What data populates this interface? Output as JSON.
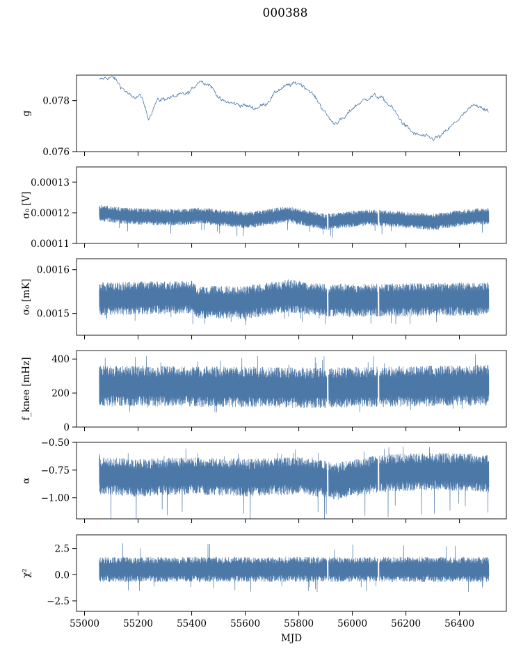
{
  "figure": {
    "title": "000388",
    "xlabel": "MJD",
    "line_color": "#4c78a8"
  },
  "chart_data": [
    {
      "type": "line",
      "name": "g",
      "ylabel": "g",
      "x_range": [
        54970,
        56575
      ],
      "ylim": [
        0.076,
        0.079
      ],
      "yticks": [
        0.076,
        0.078
      ],
      "ytick_labels": [
        "0.076",
        "0.078"
      ],
      "xticks": [
        55000,
        55200,
        55400,
        55600,
        55800,
        56000,
        56200,
        56400
      ],
      "show_xtick_labels": false,
      "x_data_range": [
        55055,
        56510
      ],
      "band": false,
      "anchors": [
        [
          55055,
          0.0788
        ],
        [
          55080,
          0.0789
        ],
        [
          55110,
          0.0789
        ],
        [
          55140,
          0.0785
        ],
        [
          55180,
          0.0781
        ],
        [
          55210,
          0.0782
        ],
        [
          55240,
          0.0773
        ],
        [
          55270,
          0.078
        ],
        [
          55310,
          0.0781
        ],
        [
          55350,
          0.0782
        ],
        [
          55390,
          0.0783
        ],
        [
          55430,
          0.0788
        ],
        [
          55470,
          0.0786
        ],
        [
          55510,
          0.078
        ],
        [
          55550,
          0.0779
        ],
        [
          55600,
          0.0778
        ],
        [
          55640,
          0.0777
        ],
        [
          55680,
          0.0779
        ],
        [
          55720,
          0.0784
        ],
        [
          55760,
          0.0786
        ],
        [
          55800,
          0.0787
        ],
        [
          55840,
          0.0784
        ],
        [
          55870,
          0.078
        ],
        [
          55900,
          0.0775
        ],
        [
          55930,
          0.0771
        ],
        [
          55970,
          0.0773
        ],
        [
          56000,
          0.0777
        ],
        [
          56040,
          0.078
        ],
        [
          56080,
          0.0782
        ],
        [
          56110,
          0.0781
        ],
        [
          56150,
          0.0777
        ],
        [
          56190,
          0.0771
        ],
        [
          56230,
          0.0767
        ],
        [
          56270,
          0.0766
        ],
        [
          56300,
          0.0765
        ],
        [
          56330,
          0.0766
        ],
        [
          56370,
          0.077
        ],
        [
          56410,
          0.0774
        ],
        [
          56450,
          0.0778
        ],
        [
          56480,
          0.0778
        ],
        [
          56510,
          0.0775
        ]
      ],
      "noise": 0.00012,
      "gaps": []
    },
    {
      "type": "line",
      "name": "sigma0_V",
      "ylabel": "σ₀ [V]",
      "x_range": [
        54970,
        56575
      ],
      "ylim": [
        0.00011,
        0.000135
      ],
      "yticks": [
        0.00011,
        0.00012,
        0.00013
      ],
      "ytick_labels": [
        "0.00011",
        "0.00012",
        "0.00013"
      ],
      "xticks": [
        55000,
        55200,
        55400,
        55600,
        55800,
        56000,
        56200,
        56400
      ],
      "show_xtick_labels": false,
      "x_data_range": [
        55055,
        56510
      ],
      "band": true,
      "anchors": [
        [
          55055,
          0.00012
        ],
        [
          55150,
          0.000119
        ],
        [
          55300,
          0.0001185
        ],
        [
          55450,
          0.000119
        ],
        [
          55600,
          0.0001175
        ],
        [
          55760,
          0.0001195
        ],
        [
          55900,
          0.000117
        ],
        [
          56050,
          0.0001185
        ],
        [
          56150,
          0.000118
        ],
        [
          56300,
          0.000117
        ],
        [
          56420,
          0.0001185
        ],
        [
          56510,
          0.000119
        ]
      ],
      "band_half": 2.7e-06,
      "spike_down": 5.5e-06,
      "spike_up": 3e-06,
      "gaps": [
        [
          55905,
          55911
        ],
        [
          56095,
          56101
        ]
      ]
    },
    {
      "type": "line",
      "name": "sigma0_mK",
      "ylabel": "σ₀ [mK]",
      "x_range": [
        54970,
        56575
      ],
      "ylim": [
        0.00145,
        0.001625
      ],
      "yticks": [
        0.0015,
        0.0016
      ],
      "ytick_labels": [
        "0.0015",
        "0.0016"
      ],
      "xticks": [
        55000,
        55200,
        55400,
        55600,
        55800,
        56000,
        56200,
        56400
      ],
      "show_xtick_labels": false,
      "x_data_range": [
        55055,
        56510
      ],
      "band": true,
      "anchors": [
        [
          55055,
          0.001533
        ],
        [
          55200,
          0.001535
        ],
        [
          55400,
          0.001537
        ],
        [
          55420,
          0.001525
        ],
        [
          55600,
          0.001525
        ],
        [
          55760,
          0.00154
        ],
        [
          55900,
          0.00153
        ],
        [
          56100,
          0.00153
        ],
        [
          56300,
          0.001532
        ],
        [
          56510,
          0.001533
        ]
      ],
      "band_half": 3.8e-05,
      "spike_down": 6e-05,
      "spike_up": 3.5e-05,
      "gaps": [
        [
          55905,
          55911
        ],
        [
          56095,
          56101
        ]
      ]
    },
    {
      "type": "line",
      "name": "fknee",
      "ylabel": "f_knee [mHz]",
      "x_range": [
        54970,
        56575
      ],
      "ylim": [
        0,
        450
      ],
      "yticks": [
        0,
        200,
        400
      ],
      "ytick_labels": [
        "0",
        "200",
        "400"
      ],
      "xticks": [
        55000,
        55200,
        55400,
        55600,
        55800,
        56000,
        56200,
        56400
      ],
      "show_xtick_labels": false,
      "x_data_range": [
        55055,
        56510
      ],
      "band": true,
      "anchors": [
        [
          55055,
          240
        ],
        [
          55300,
          240
        ],
        [
          55600,
          235
        ],
        [
          55900,
          230
        ],
        [
          56200,
          240
        ],
        [
          56510,
          245
        ]
      ],
      "band_half": 120,
      "spike_down": 165,
      "spike_up": 190,
      "gaps": [
        [
          55905,
          55911
        ],
        [
          56095,
          56101
        ]
      ]
    },
    {
      "type": "line",
      "name": "alpha",
      "ylabel": "α",
      "x_range": [
        54970,
        56575
      ],
      "ylim": [
        -1.19,
        -0.5
      ],
      "yticks": [
        -1.0,
        -0.75,
        -0.5
      ],
      "ytick_labels": [
        "−1.00",
        "−0.75",
        "−0.50"
      ],
      "xticks": [
        55000,
        55200,
        55400,
        55600,
        55800,
        56000,
        56200,
        56400
      ],
      "show_xtick_labels": false,
      "x_data_range": [
        55055,
        56510
      ],
      "band": true,
      "anchors": [
        [
          55055,
          -0.8
        ],
        [
          55200,
          -0.82
        ],
        [
          55400,
          -0.8
        ],
        [
          55600,
          -0.82
        ],
        [
          55800,
          -0.8
        ],
        [
          55950,
          -0.85
        ],
        [
          56100,
          -0.78
        ],
        [
          56300,
          -0.76
        ],
        [
          56510,
          -0.78
        ]
      ],
      "band_half": 0.17,
      "spike_down": 0.4,
      "spike_up": 0.25,
      "gaps": [
        [
          55905,
          55911
        ],
        [
          56095,
          56101
        ]
      ]
    },
    {
      "type": "line",
      "name": "chi2",
      "ylabel": "χ²",
      "x_range": [
        54970,
        56575
      ],
      "ylim": [
        -3.5,
        3.8
      ],
      "yticks": [
        -2.5,
        0.0,
        2.5
      ],
      "ytick_labels": [
        "−2.5",
        "0.0",
        "2.5"
      ],
      "xticks": [
        55000,
        55200,
        55400,
        55600,
        55800,
        56000,
        56200,
        56400
      ],
      "xtick_labels": [
        "55000",
        "55200",
        "55400",
        "55600",
        "55800",
        "56000",
        "56200",
        "56400"
      ],
      "show_xtick_labels": true,
      "x_data_range": [
        55055,
        56510
      ],
      "band": true,
      "anchors": [
        [
          55055,
          0.5
        ],
        [
          55300,
          0.5
        ],
        [
          55600,
          0.5
        ],
        [
          55900,
          0.5
        ],
        [
          56200,
          0.5
        ],
        [
          56510,
          0.5
        ]
      ],
      "band_half": 1.2,
      "spike_down": 2.2,
      "spike_up": 2.7,
      "gaps": [
        [
          55905,
          55911
        ],
        [
          56095,
          56101
        ]
      ]
    }
  ]
}
